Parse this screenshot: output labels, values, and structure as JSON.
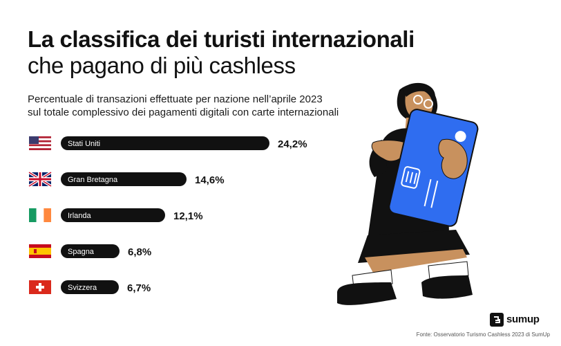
{
  "header": {
    "title_line1": "La classifica dei turisti internazionali",
    "title_line2": "che pagano di più cashless",
    "subtitle_line1": "Percentuale di transazioni effettuate per nazione nell’aprile 2023",
    "subtitle_line2": "sul totale complessivo dei pagamenti digitali con carte internazionali"
  },
  "chart_data": {
    "type": "bar",
    "orientation": "horizontal",
    "categories": [
      "Stati Uniti",
      "Gran Bretagna",
      "Irlanda",
      "Spagna",
      "Svizzera"
    ],
    "values": [
      24.2,
      14.6,
      12.1,
      6.8,
      6.7
    ],
    "value_labels": [
      "24,2%",
      "14,6%",
      "12,1%",
      "6,8%",
      "6,7%"
    ],
    "flags": [
      "us-flag-icon",
      "uk-flag-icon",
      "ireland-flag-icon",
      "spain-flag-icon",
      "switzerland-flag-icon"
    ],
    "bar_color": "#111111",
    "title": "La classifica dei turisti internazionali che pagano di più cashless",
    "xlabel": "",
    "ylabel": ""
  },
  "footer": {
    "source": "Fonte: Osservatorio Turismo Cashless 2023 di SumUp",
    "brand": "sumup"
  },
  "colors": {
    "card_blue": "#2f6df0",
    "skin": "#c8915e",
    "text": "#111111"
  }
}
